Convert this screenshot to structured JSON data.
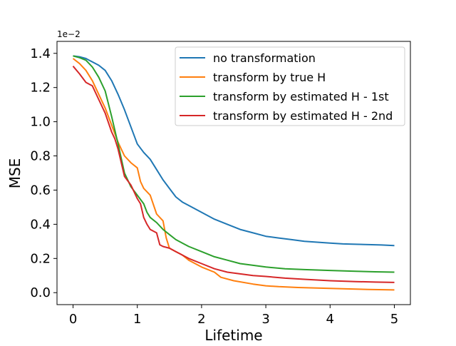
{
  "chart_data": {
    "type": "line",
    "xlabel": "Lifetime",
    "ylabel": "MSE",
    "offset_label": "1e−2",
    "xlim": [
      -0.25,
      5.25
    ],
    "ylim": [
      -0.07,
      1.47
    ],
    "xticks": [
      0,
      1,
      2,
      3,
      4,
      5
    ],
    "yticks": [
      0.0,
      0.2,
      0.4,
      0.6,
      0.8,
      1.0,
      1.2,
      1.4
    ],
    "xtick_labels": [
      "0",
      "1",
      "2",
      "3",
      "4",
      "5"
    ],
    "ytick_labels": [
      "0.0",
      "0.2",
      "0.4",
      "0.6",
      "0.8",
      "1.0",
      "1.2",
      "1.4"
    ],
    "legend_position": "top-right",
    "grid": false,
    "series": [
      {
        "name": "no transformation",
        "color": "#1f77b4",
        "x": [
          0,
          0.1,
          0.2,
          0.3,
          0.4,
          0.5,
          0.6,
          0.7,
          0.8,
          0.9,
          1.0,
          1.1,
          1.2,
          1.3,
          1.4,
          1.5,
          1.6,
          1.7,
          1.8,
          2.0,
          2.2,
          2.4,
          2.6,
          2.8,
          3.0,
          3.2,
          3.4,
          3.6,
          3.8,
          4.0,
          4.2,
          4.4,
          4.6,
          4.8,
          5.0
        ],
        "y": [
          1.385,
          1.38,
          1.37,
          1.35,
          1.33,
          1.3,
          1.24,
          1.16,
          1.07,
          0.97,
          0.87,
          0.82,
          0.78,
          0.72,
          0.66,
          0.61,
          0.56,
          0.53,
          0.51,
          0.47,
          0.43,
          0.4,
          0.37,
          0.35,
          0.33,
          0.32,
          0.31,
          0.3,
          0.295,
          0.29,
          0.285,
          0.283,
          0.281,
          0.279,
          0.275
        ]
      },
      {
        "name": "transform by true H",
        "color": "#ff7f0e",
        "x": [
          0,
          0.1,
          0.2,
          0.3,
          0.4,
          0.5,
          0.6,
          0.7,
          0.8,
          0.9,
          1.0,
          1.05,
          1.1,
          1.2,
          1.3,
          1.4,
          1.45,
          1.5,
          1.6,
          1.7,
          1.8,
          2.0,
          2.2,
          2.3,
          2.5,
          2.8,
          3.0,
          3.2,
          3.5,
          3.8,
          4.0,
          4.3,
          4.6,
          5.0
        ],
        "y": [
          1.37,
          1.34,
          1.3,
          1.24,
          1.16,
          1.08,
          0.98,
          0.88,
          0.8,
          0.76,
          0.73,
          0.65,
          0.61,
          0.57,
          0.46,
          0.42,
          0.32,
          0.26,
          0.24,
          0.22,
          0.19,
          0.15,
          0.12,
          0.09,
          0.07,
          0.05,
          0.04,
          0.035,
          0.03,
          0.027,
          0.025,
          0.022,
          0.019,
          0.016
        ]
      },
      {
        "name": "transform by estimated H - 1st",
        "color": "#2ca02c",
        "x": [
          0,
          0.1,
          0.2,
          0.3,
          0.4,
          0.5,
          0.6,
          0.7,
          0.8,
          0.9,
          1.0,
          1.1,
          1.15,
          1.2,
          1.3,
          1.4,
          1.5,
          1.6,
          1.8,
          2.0,
          2.2,
          2.4,
          2.6,
          2.8,
          3.0,
          3.3,
          3.6,
          4.0,
          4.4,
          4.7,
          5.0
        ],
        "y": [
          1.385,
          1.375,
          1.36,
          1.32,
          1.26,
          1.18,
          1.03,
          0.87,
          0.7,
          0.62,
          0.57,
          0.52,
          0.47,
          0.44,
          0.41,
          0.37,
          0.34,
          0.31,
          0.27,
          0.24,
          0.21,
          0.19,
          0.17,
          0.16,
          0.15,
          0.14,
          0.135,
          0.13,
          0.125,
          0.122,
          0.12
        ]
      },
      {
        "name": "transform by estimated H - 2nd",
        "color": "#d62728",
        "x": [
          0,
          0.1,
          0.2,
          0.3,
          0.4,
          0.5,
          0.6,
          0.65,
          0.7,
          0.8,
          0.9,
          1.0,
          1.05,
          1.1,
          1.15,
          1.2,
          1.3,
          1.35,
          1.4,
          1.5,
          1.6,
          1.8,
          2.0,
          2.2,
          2.4,
          2.6,
          2.8,
          3.0,
          3.3,
          3.6,
          4.0,
          4.4,
          4.7,
          5.0
        ],
        "y": [
          1.325,
          1.28,
          1.23,
          1.21,
          1.13,
          1.05,
          0.94,
          0.9,
          0.84,
          0.68,
          0.63,
          0.55,
          0.52,
          0.44,
          0.4,
          0.37,
          0.35,
          0.28,
          0.27,
          0.26,
          0.24,
          0.2,
          0.17,
          0.14,
          0.12,
          0.11,
          0.1,
          0.095,
          0.085,
          0.078,
          0.07,
          0.065,
          0.062,
          0.06
        ]
      }
    ]
  }
}
